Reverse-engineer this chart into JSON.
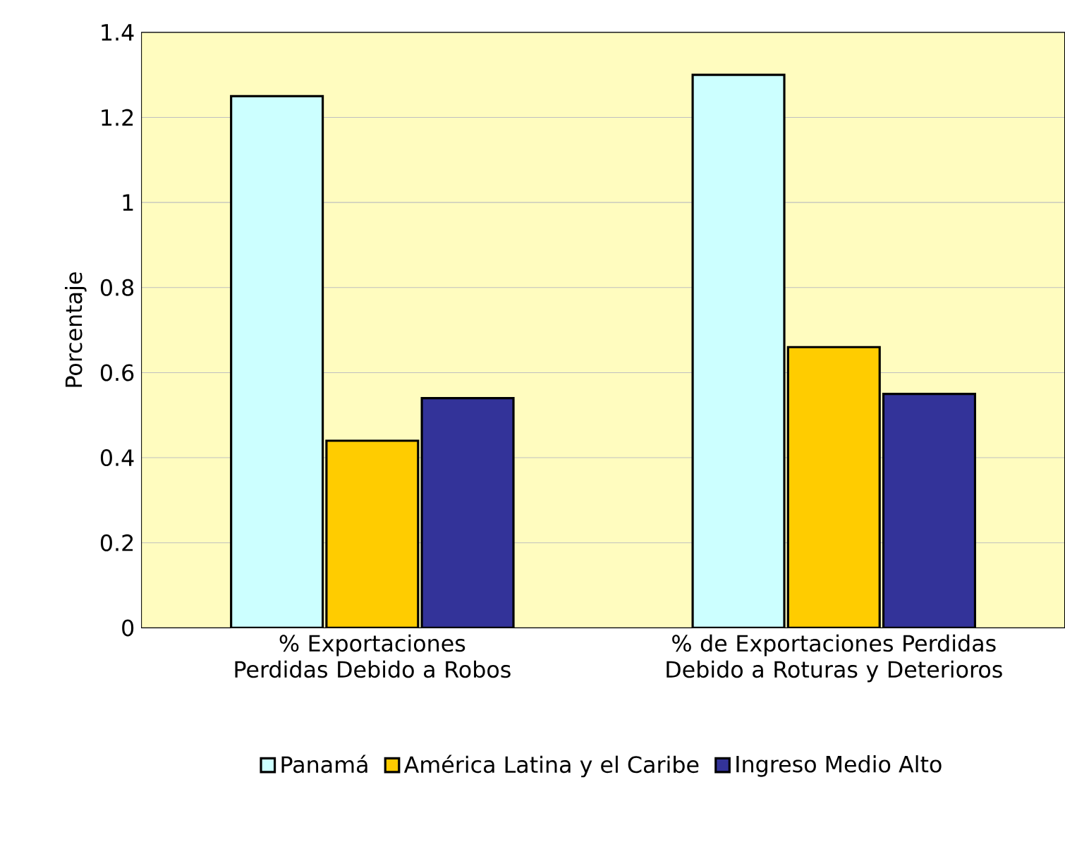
{
  "chart_data": {
    "type": "bar",
    "ylabel": "Porcentaje",
    "categories": [
      "% Exportaciones Perdidas Debido a Robos",
      "% de Exportaciones Perdidas Debido a Roturas y Deterioros"
    ],
    "series": [
      {
        "name": "Panamá",
        "color": "#ccffff",
        "values": [
          1.25,
          1.3
        ]
      },
      {
        "name": "América Latina y el Caribe",
        "color": "#ffcc00",
        "values": [
          0.44,
          0.66
        ]
      },
      {
        "name": "Ingreso Medio Alto",
        "color": "#333399",
        "values": [
          0.54,
          0.55
        ]
      }
    ],
    "ylim": [
      0,
      1.4
    ],
    "yticks": [
      0,
      0.2,
      0.4,
      0.6,
      0.8,
      1,
      1.2,
      1.4
    ],
    "grid": "y",
    "legend": "bottom"
  }
}
